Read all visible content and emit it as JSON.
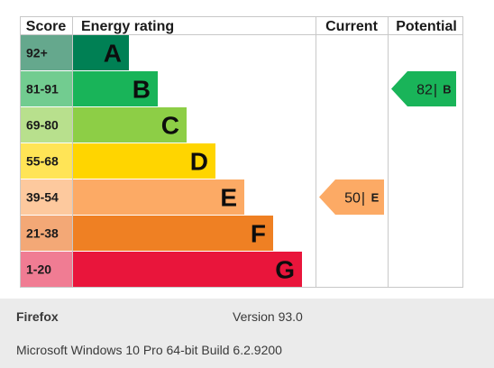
{
  "chart_data": {
    "type": "bar",
    "headers": {
      "score": "Score",
      "rating": "Energy rating",
      "current": "Current",
      "potential": "Potential"
    },
    "bands": [
      {
        "range": "92+",
        "letter": "A",
        "color": "#008054",
        "score_bg": "#65a88d"
      },
      {
        "range": "81-91",
        "letter": "B",
        "color": "#19b459",
        "score_bg": "#72cc90"
      },
      {
        "range": "69-80",
        "letter": "C",
        "color": "#8dce46",
        "score_bg": "#b8e08d"
      },
      {
        "range": "55-68",
        "letter": "D",
        "color": "#ffd500",
        "score_bg": "#ffe456"
      },
      {
        "range": "39-54",
        "letter": "E",
        "color": "#fcaa65",
        "score_bg": "#fdc99e"
      },
      {
        "range": "21-38",
        "letter": "F",
        "color": "#ef8023",
        "score_bg": "#f3a876"
      },
      {
        "range": "1-20",
        "letter": "G",
        "color": "#e9153b",
        "score_bg": "#f07c93"
      }
    ],
    "current": {
      "value": 50,
      "separator": "|",
      "letter": "E",
      "color": "#fcaa65"
    },
    "potential": {
      "value": 82,
      "separator": "|",
      "letter": "B",
      "color": "#19b459"
    }
  },
  "footer": {
    "browser": "Firefox",
    "version": "Version 93.0",
    "os": "Microsoft Windows 10 Pro 64-bit Build 6.2.9200"
  }
}
